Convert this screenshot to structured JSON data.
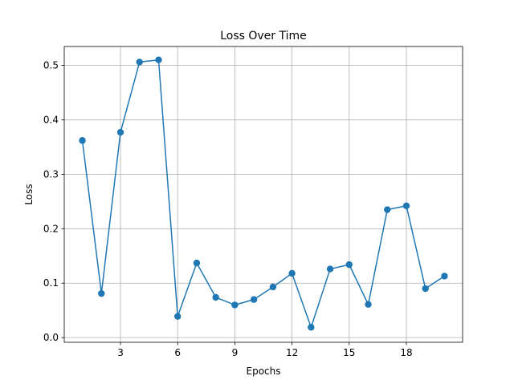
{
  "chart_data": {
    "type": "line",
    "title": "Loss Over Time",
    "xlabel": "Epochs",
    "ylabel": "Loss",
    "x": [
      1,
      2,
      3,
      4,
      5,
      6,
      7,
      8,
      9,
      10,
      11,
      12,
      13,
      14,
      15,
      16,
      17,
      18,
      19,
      20
    ],
    "series": [
      {
        "values": [
          0.362,
          0.081,
          0.377,
          0.506,
          0.51,
          0.039,
          0.137,
          0.074,
          0.06,
          0.07,
          0.093,
          0.118,
          0.019,
          0.126,
          0.134,
          0.061,
          0.235,
          0.242,
          0.09,
          0.113
        ],
        "color": "#1f77b4",
        "marker": "circle"
      }
    ],
    "xticks": [
      3,
      6,
      9,
      12,
      15,
      18
    ],
    "xtick_labels": [
      "3",
      "6",
      "9",
      "12",
      "15",
      "18"
    ],
    "yticks": [
      0.0,
      0.1,
      0.2,
      0.3,
      0.4,
      0.5
    ],
    "ytick_labels": [
      "0.0",
      "0.1",
      "0.2",
      "0.3",
      "0.4",
      "0.5"
    ],
    "xlim": [
      0.05,
      20.95
    ],
    "ylim": [
      -0.0086,
      0.5346
    ],
    "grid": true,
    "legend": "none"
  }
}
